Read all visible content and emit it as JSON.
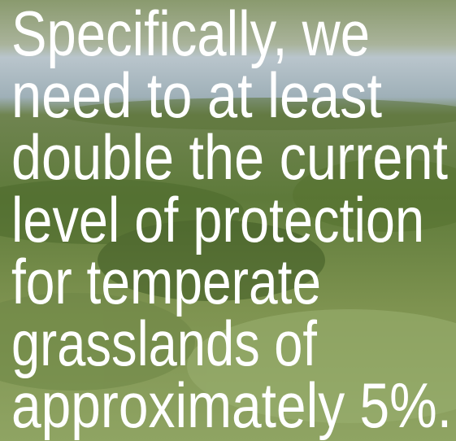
{
  "quote": {
    "lines": [
      "Specifically, we",
      "need to at least",
      "double the current",
      "level of protection",
      "for temperate",
      "grasslands of",
      "approximately 5%."
    ]
  }
}
